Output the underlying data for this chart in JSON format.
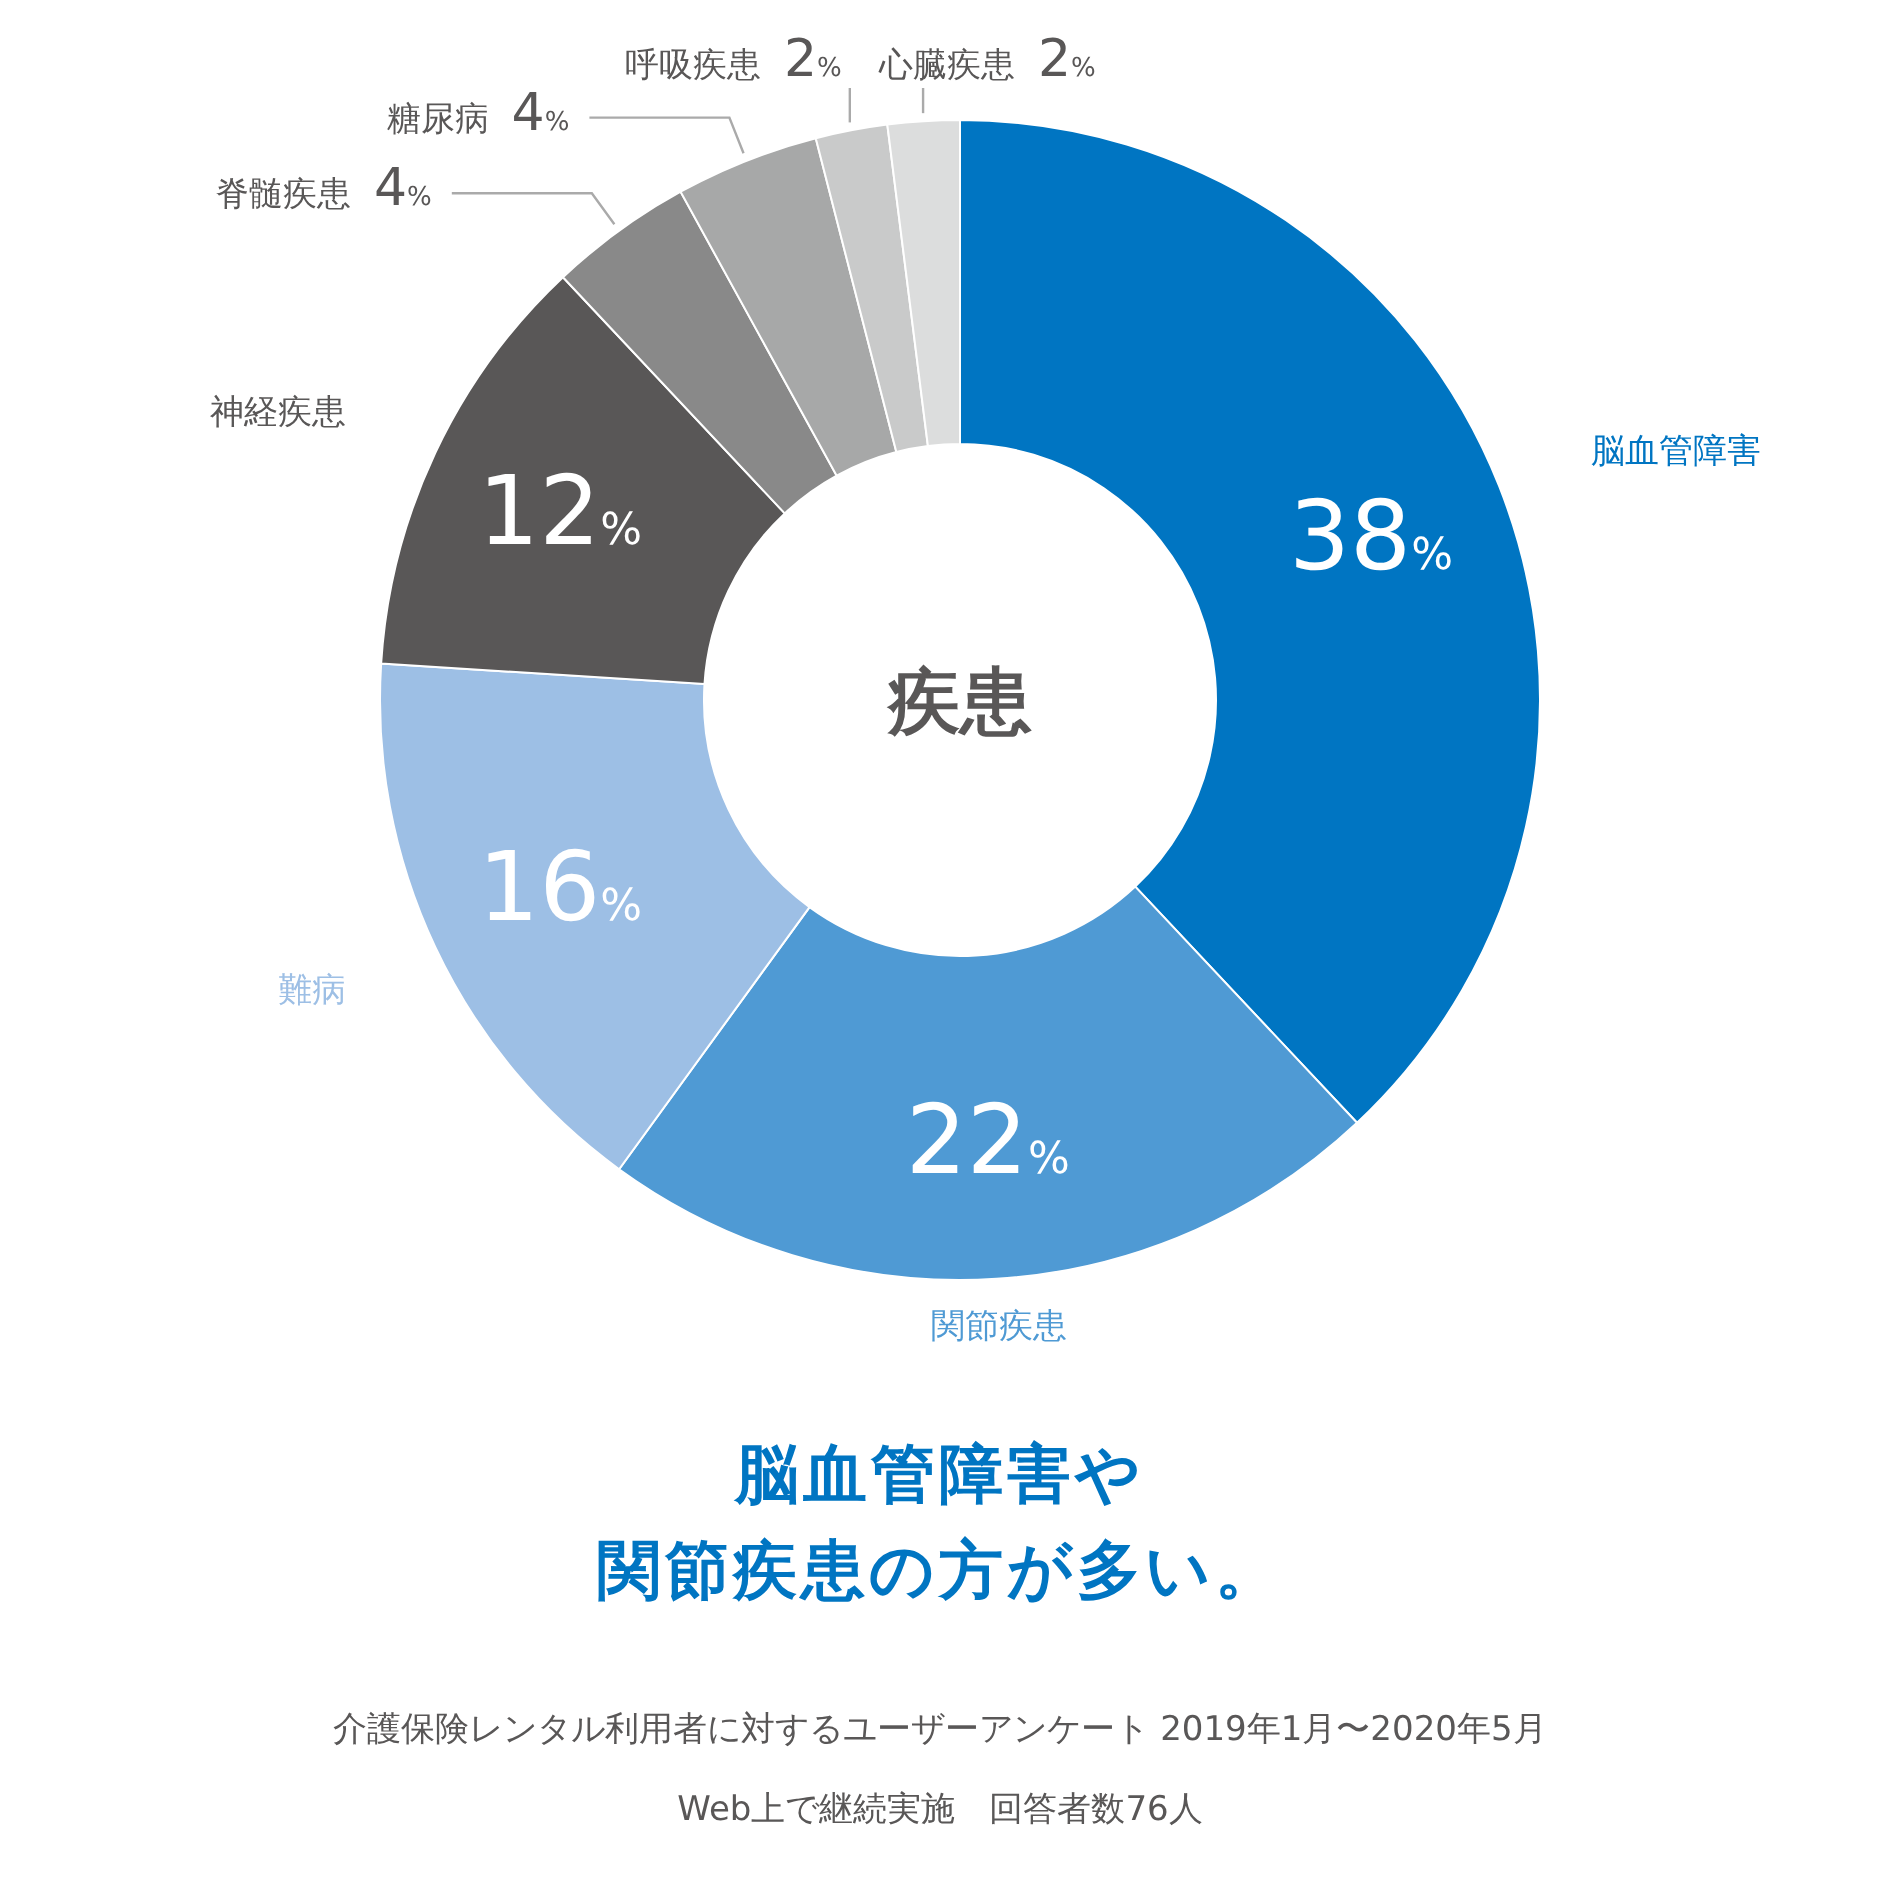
{
  "chart_data": {
    "type": "donut",
    "title": "脳血管障害や",
    "subtitle": "関節疾患の方が多い。",
    "categories": [
      "脳血管障害",
      "関節疾患",
      "難病",
      "神経疾患",
      "脊髄疾患",
      "糖尿病",
      "呼吸疾患",
      "心臓疾患"
    ],
    "values": [
      38,
      22,
      16,
      12,
      4,
      4,
      2,
      2
    ],
    "colors": [
      "#0075c2",
      "#4f9ad4",
      "#9dbfe5",
      "#595757",
      "#898989",
      "#a7a8a8",
      "#c9caca",
      "#dcdddd"
    ],
    "value_labels": [
      "38%",
      "22%",
      "16%",
      "12%",
      "4%",
      "4%",
      "2%",
      "2%"
    ],
    "annotations": [
      "疾患",
      "介護保険レンタル利用者に対するユーザーアンケート 2019年1月〜2020年5月",
      "Web上で継続実施　回答者数76人"
    ]
  }
}
